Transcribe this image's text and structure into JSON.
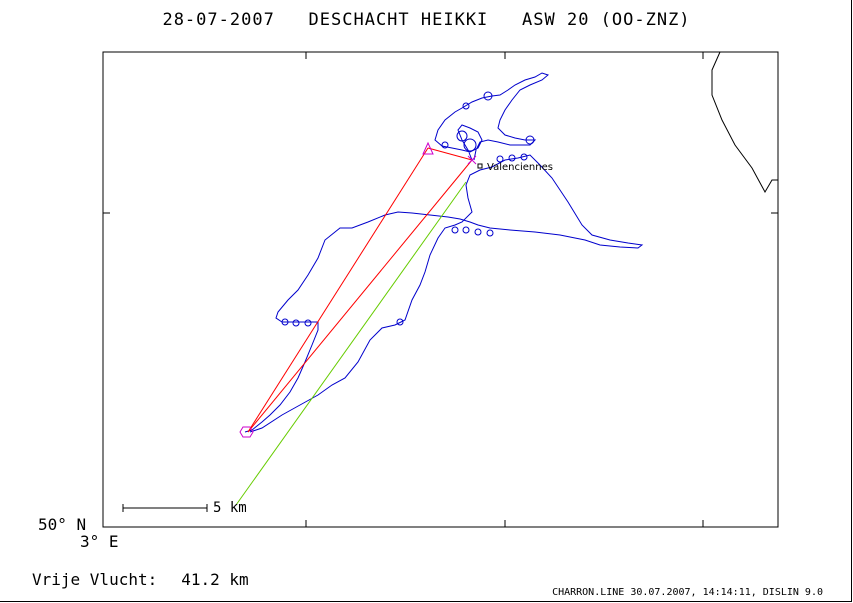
{
  "header": {
    "date": "28-07-2007",
    "pilot": "DESCHACHT HEIKKI",
    "glider": "ASW 20 (OO-ZNZ)"
  },
  "map": {
    "latitude_label": "50° N",
    "longitude_label": "3° E",
    "scale_label": "5 km",
    "city_label": "Valenciennes",
    "colors": {
      "track": "#0000cc",
      "legs": "#ff0000",
      "closing": "#66cc00",
      "markers": "#cc00cc",
      "frame": "#000000"
    }
  },
  "summary": {
    "label": "Vrije Vlucht:",
    "distance": "41.2 km"
  },
  "footer": {
    "text": "CHARRON.LINE 30.07.2007, 14:14:11, DISLIN 9.0"
  }
}
